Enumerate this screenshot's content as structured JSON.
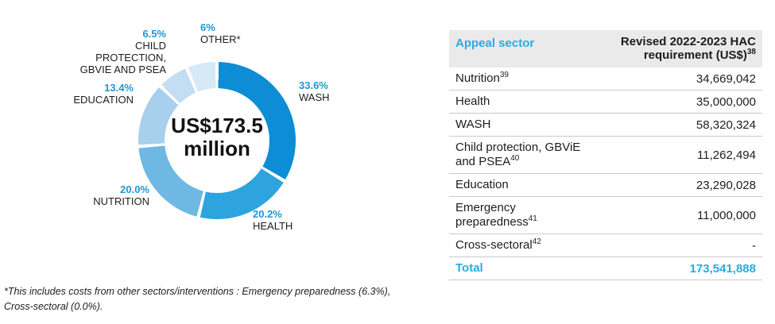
{
  "colors": {
    "accent_cyan": "#29abe2",
    "label_blue": "#1e97d5",
    "header_bg": "#eaeaea",
    "row_border": "#c9c9c9"
  },
  "chart": {
    "center_line1": "US$173.5",
    "center_line2": "million",
    "labels": {
      "wash": {
        "pct": "33.6%",
        "name": "WASH"
      },
      "health": {
        "pct": "20.2%",
        "name": "HEALTH"
      },
      "nutrition": {
        "pct": "20.0%",
        "name": "NUTRITION"
      },
      "education": {
        "pct": "13.4%",
        "name": "EDUCATION"
      },
      "child_protection": {
        "pct": "6.5%",
        "name": "CHILD PROTECTION, GBVIE AND PSEA"
      },
      "other": {
        "pct": "6%",
        "name": "OTHER*"
      }
    }
  },
  "chart_data": [
    {
      "type": "pie",
      "subtype": "donut",
      "title": "US$173.5 million",
      "categories": [
        "WASH",
        "HEALTH",
        "NUTRITION",
        "EDUCATION",
        "CHILD PROTECTION, GBVIE AND PSEA",
        "OTHER*"
      ],
      "values": [
        33.6,
        20.2,
        20.0,
        13.4,
        6.5,
        6.3
      ],
      "value_labels": [
        "33.6%",
        "20.2%",
        "20.0%",
        "13.4%",
        "6.5%",
        "6%"
      ],
      "colors": [
        "#0d8dd5",
        "#2ea4de",
        "#6fb8e3",
        "#a8cfec",
        "#c3ddf2",
        "#d7e9f7"
      ],
      "center_text": "US$173.5 million",
      "start_angle_deg": 0,
      "direction": "clockwise",
      "legend_position": "around-labels"
    },
    {
      "type": "table",
      "columns": [
        "Appeal sector",
        "Revised 2022-2023 HAC requirement (US$)38"
      ],
      "rows": [
        [
          "Nutrition39",
          "34,669,042"
        ],
        [
          "Health",
          "35,000,000"
        ],
        [
          "WASH",
          "58,320,324"
        ],
        [
          "Child protection, GBViE and PSEA40",
          "11,262,494"
        ],
        [
          "Education",
          "23,290,028"
        ],
        [
          "Emergency preparedness41",
          "11,000,000"
        ],
        [
          "Cross-sectoral42",
          "-"
        ],
        [
          "Total",
          "173,541,888"
        ]
      ]
    }
  ],
  "table": {
    "header": {
      "col1": "Appeal sector",
      "col2_line1": "Revised 2022-2023 HAC",
      "col2_line2": "requirement (US$)",
      "col2_sup": "38"
    },
    "rows": [
      {
        "label": "Nutrition",
        "sup": "39",
        "value": "34,669,042"
      },
      {
        "label": "Health",
        "sup": "",
        "value": "35,000,000"
      },
      {
        "label": "WASH",
        "sup": "",
        "value": "58,320,324"
      },
      {
        "label": "Child protection, GBViE and PSEA",
        "sup": "40",
        "value": "11,262,494"
      },
      {
        "label": "Education",
        "sup": "",
        "value": "23,290,028"
      },
      {
        "label": "Emergency preparedness",
        "sup": "41",
        "value": "11,000,000"
      },
      {
        "label": "Cross-sectoral",
        "sup": "42",
        "value": "-"
      }
    ],
    "total": {
      "label": "Total",
      "value": "173,541,888"
    }
  },
  "footnote": "*This includes costs from other sectors/interventions : Emergency preparedness (6.3%), Cross-sectoral (0.0%)."
}
